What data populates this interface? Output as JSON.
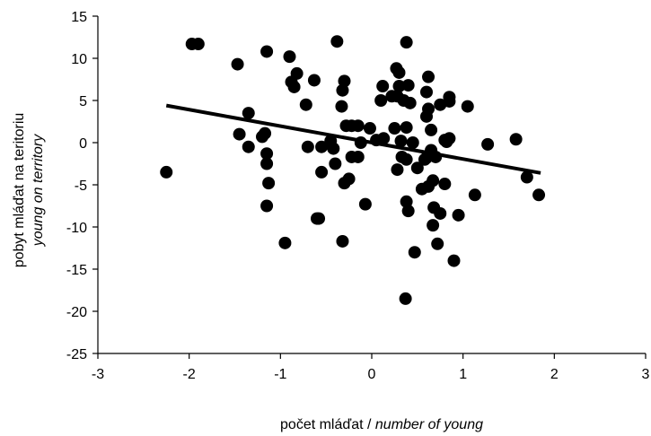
{
  "chart_data": {
    "type": "scatter",
    "xlabel": {
      "main": "počet mláďat",
      "separator": " / ",
      "sub": "number of young"
    },
    "ylabel": {
      "main": "pobyt mláďat na teritoriu",
      "sub": "young on territory"
    },
    "xlim": [
      -3,
      3
    ],
    "ylim": [
      -25,
      15
    ],
    "xticks": [
      -3,
      -2,
      -1,
      0,
      1,
      2,
      3
    ],
    "yticks": [
      -25,
      -20,
      -15,
      -10,
      -5,
      0,
      5,
      10,
      15
    ],
    "grid": false,
    "legend": "none",
    "colors": {
      "marker": "#000000",
      "line": "#000000",
      "axis": "#000000"
    },
    "trendline": {
      "x": [
        -2.25,
        1.85
      ],
      "y": [
        4.4,
        -3.6
      ]
    },
    "points": [
      [
        -2.25,
        -3.5
      ],
      [
        -1.97,
        11.7
      ],
      [
        -1.9,
        11.7
      ],
      [
        -1.47,
        9.3
      ],
      [
        -1.45,
        1.0
      ],
      [
        -1.35,
        3.5
      ],
      [
        -1.35,
        -0.5
      ],
      [
        -1.2,
        0.7
      ],
      [
        -1.17,
        1.1
      ],
      [
        -1.15,
        10.8
      ],
      [
        -1.15,
        -1.3
      ],
      [
        -1.15,
        -2.5
      ],
      [
        -1.13,
        -4.8
      ],
      [
        -1.15,
        -7.5
      ],
      [
        -0.95,
        -11.9
      ],
      [
        -0.9,
        10.2
      ],
      [
        -0.88,
        7.2
      ],
      [
        -0.85,
        6.6
      ],
      [
        -0.82,
        8.2
      ],
      [
        -0.72,
        4.5
      ],
      [
        -0.7,
        -0.5
      ],
      [
        -0.63,
        7.4
      ],
      [
        -0.6,
        -9.0
      ],
      [
        -0.58,
        -9.0
      ],
      [
        -0.55,
        -3.5
      ],
      [
        -0.55,
        -0.5
      ],
      [
        -0.45,
        0.2
      ],
      [
        -0.42,
        -0.7
      ],
      [
        -0.4,
        -2.5
      ],
      [
        -0.38,
        12.0
      ],
      [
        -0.33,
        4.3
      ],
      [
        -0.32,
        6.2
      ],
      [
        -0.3,
        7.3
      ],
      [
        -0.3,
        -4.8
      ],
      [
        -0.32,
        -11.7
      ],
      [
        -0.28,
        2.0
      ],
      [
        -0.25,
        -4.3
      ],
      [
        -0.22,
        2.0
      ],
      [
        -0.22,
        -1.7
      ],
      [
        -0.15,
        2.0
      ],
      [
        -0.15,
        -1.7
      ],
      [
        -0.12,
        0.0
      ],
      [
        -0.07,
        -7.3
      ],
      [
        -0.02,
        1.7
      ],
      [
        0.05,
        0.3
      ],
      [
        0.1,
        5.0
      ],
      [
        0.12,
        6.7
      ],
      [
        0.13,
        0.5
      ],
      [
        0.22,
        5.5
      ],
      [
        0.25,
        1.7
      ],
      [
        0.27,
        8.8
      ],
      [
        0.28,
        -3.2
      ],
      [
        0.28,
        5.5
      ],
      [
        0.3,
        6.7
      ],
      [
        0.3,
        8.3
      ],
      [
        0.32,
        0.2
      ],
      [
        0.33,
        -1.7
      ],
      [
        0.35,
        5.0
      ],
      [
        0.37,
        -18.5
      ],
      [
        0.38,
        1.8
      ],
      [
        0.38,
        -2.0
      ],
      [
        0.38,
        11.9
      ],
      [
        0.38,
        -7.0
      ],
      [
        0.4,
        -8.1
      ],
      [
        0.4,
        6.8
      ],
      [
        0.42,
        4.7
      ],
      [
        0.45,
        0.0
      ],
      [
        0.47,
        -13.0
      ],
      [
        0.5,
        -3.0
      ],
      [
        0.55,
        -5.5
      ],
      [
        0.58,
        -2.0
      ],
      [
        0.6,
        -1.8
      ],
      [
        0.6,
        6.0
      ],
      [
        0.6,
        3.1
      ],
      [
        0.62,
        4.0
      ],
      [
        0.62,
        7.8
      ],
      [
        0.62,
        -5.2
      ],
      [
        0.65,
        -0.9
      ],
      [
        0.65,
        1.5
      ],
      [
        0.67,
        -4.5
      ],
      [
        0.67,
        -9.8
      ],
      [
        0.68,
        -7.7
      ],
      [
        0.7,
        -1.7
      ],
      [
        0.72,
        -12.0
      ],
      [
        0.75,
        -8.4
      ],
      [
        0.75,
        4.5
      ],
      [
        0.8,
        -4.9
      ],
      [
        0.8,
        0.3
      ],
      [
        0.82,
        0.1
      ],
      [
        0.85,
        0.5
      ],
      [
        0.85,
        4.9
      ],
      [
        0.85,
        5.4
      ],
      [
        0.9,
        -14.0
      ],
      [
        0.95,
        -8.6
      ],
      [
        1.05,
        4.3
      ],
      [
        1.13,
        -6.2
      ],
      [
        1.27,
        -0.2
      ],
      [
        1.58,
        0.4
      ],
      [
        1.7,
        -4.1
      ],
      [
        1.83,
        -6.2
      ]
    ]
  }
}
